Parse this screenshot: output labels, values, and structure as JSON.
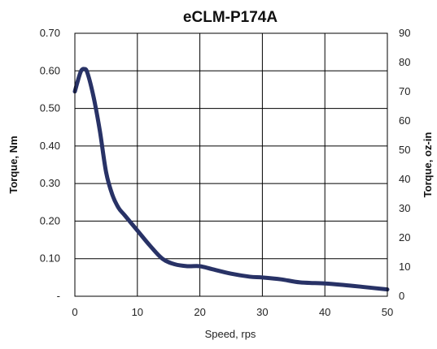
{
  "chart_data": {
    "type": "line",
    "title": "eCLM-P174A",
    "xlabel": "Speed, rps",
    "ylabel": "Torque,  Nm",
    "y2label": "Torque,  oz-in",
    "xlim": [
      0,
      50
    ],
    "ylim": [
      0,
      0.7
    ],
    "y2lim": [
      0,
      90
    ],
    "grid": true,
    "x_ticks": [
      "0",
      "10",
      "20",
      "30",
      "40",
      "50"
    ],
    "y_ticks": [
      "-",
      "0.10",
      "0.20",
      "0.30",
      "0.40",
      "0.50",
      "0.60",
      "0.70"
    ],
    "y2_ticks": [
      "0",
      "10",
      "20",
      "30",
      "40",
      "50",
      "60",
      "70",
      "80",
      "90"
    ],
    "series": [
      {
        "color": "#283266",
        "x": [
          0,
          0.5,
          1,
          1.5,
          2,
          3,
          4,
          5,
          6,
          7,
          8,
          10,
          12,
          14,
          16,
          18,
          20,
          22,
          25,
          28,
          30,
          33,
          36,
          40,
          43,
          46,
          50
        ],
        "y": [
          0.545,
          0.575,
          0.6,
          0.605,
          0.595,
          0.53,
          0.44,
          0.33,
          0.27,
          0.235,
          0.215,
          0.175,
          0.135,
          0.1,
          0.085,
          0.08,
          0.08,
          0.072,
          0.06,
          0.052,
          0.05,
          0.045,
          0.037,
          0.034,
          0.03,
          0.025,
          0.018
        ]
      }
    ]
  }
}
